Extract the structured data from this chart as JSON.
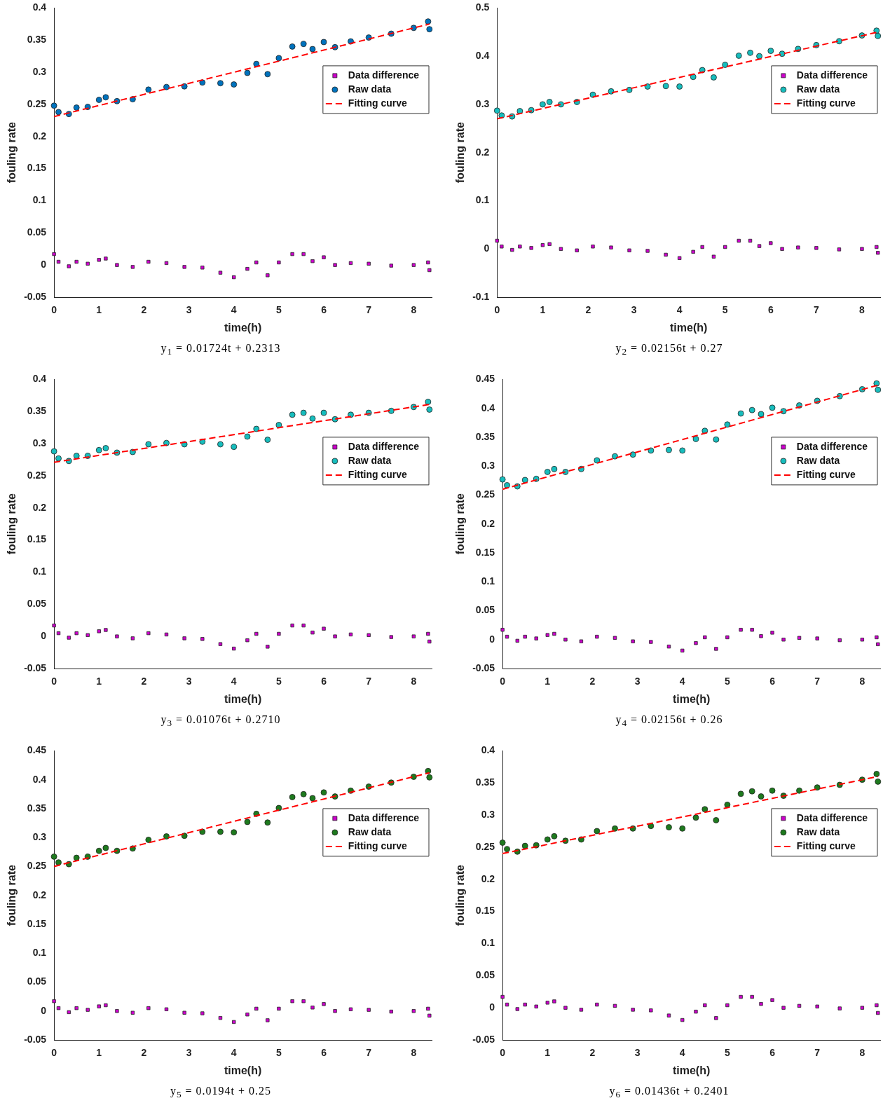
{
  "chart_data": [
    {
      "type": "scatter",
      "xlabel": "time(h)",
      "ylabel": "fouling rate",
      "xlim": [
        0,
        8.4
      ],
      "xticks": [
        0,
        1,
        2,
        3,
        4,
        5,
        6,
        7,
        8
      ],
      "ylim": [
        -0.05,
        0.4
      ],
      "yticks": [
        -0.05,
        0,
        0.05,
        0.1,
        0.15,
        0.2,
        0.25,
        0.3,
        0.35,
        0.4
      ],
      "legend": "right",
      "annotations": [
        "y$_{1}$ = 0.01724t + 0.2313"
      ],
      "x": [
        0,
        0.1,
        0.33,
        0.5,
        0.75,
        1.0,
        1.15,
        1.4,
        1.75,
        2.1,
        2.5,
        2.9,
        3.3,
        3.7,
        4.0,
        4.3,
        4.5,
        4.75,
        5.0,
        5.3,
        5.55,
        5.75,
        6.0,
        6.25,
        6.6,
        7.0,
        7.5,
        8.0,
        8.32,
        8.35
      ],
      "series": [
        {
          "name": "Data difference",
          "type": "scatter",
          "marker": "square",
          "color": "#cc00cc",
          "values": [
            0.017,
            0.005,
            -0.002,
            0.005,
            0.002,
            0.008,
            0.01,
            0.0,
            -0.003,
            0.005,
            0.003,
            -0.003,
            -0.004,
            -0.012,
            -0.019,
            -0.006,
            0.004,
            -0.016,
            0.004,
            0.017,
            0.017,
            0.006,
            0.012,
            0.0,
            0.003,
            0.002,
            -0.001,
            0.0,
            0.004,
            -0.008
          ]
        },
        {
          "name": "Raw data",
          "type": "scatter",
          "marker": "circle",
          "color": "#0072bd",
          "values": [
            0.248,
            0.238,
            0.235,
            0.245,
            0.246,
            0.257,
            0.261,
            0.255,
            0.258,
            0.273,
            0.277,
            0.278,
            0.284,
            0.283,
            0.281,
            0.299,
            0.313,
            0.297,
            0.322,
            0.34,
            0.344,
            0.336,
            0.347,
            0.339,
            0.348,
            0.354,
            0.36,
            0.369,
            0.379,
            0.367
          ]
        },
        {
          "name": "Fitting curve",
          "type": "line",
          "marker": "none",
          "line_style": "dashed",
          "color": "#ff0000",
          "x": [
            0,
            4,
            8.35
          ],
          "values": [
            0.231,
            0.3,
            0.375
          ]
        }
      ]
    },
    {
      "type": "scatter",
      "xlabel": "time(h)",
      "ylabel": "fouling rate",
      "xlim": [
        0,
        8.4
      ],
      "xticks": [
        0,
        1,
        2,
        3,
        4,
        5,
        6,
        7,
        8
      ],
      "ylim": [
        -0.1,
        0.5
      ],
      "yticks": [
        -0.1,
        0,
        0.1,
        0.2,
        0.3,
        0.4,
        0.5
      ],
      "legend": "right",
      "annotations": [
        "y$_{2}$ = 0.02156t + 0.27"
      ],
      "x": [
        0,
        0.1,
        0.33,
        0.5,
        0.75,
        1.0,
        1.15,
        1.4,
        1.75,
        2.1,
        2.5,
        2.9,
        3.3,
        3.7,
        4.0,
        4.3,
        4.5,
        4.75,
        5.0,
        5.3,
        5.55,
        5.75,
        6.0,
        6.25,
        6.6,
        7.0,
        7.5,
        8.0,
        8.32,
        8.35
      ],
      "series": [
        {
          "name": "Data difference",
          "type": "scatter",
          "marker": "square",
          "color": "#cc00cc",
          "values": [
            0.017,
            0.005,
            -0.002,
            0.005,
            0.002,
            0.008,
            0.01,
            0.0,
            -0.003,
            0.005,
            0.003,
            -0.003,
            -0.004,
            -0.012,
            -0.019,
            -0.006,
            0.004,
            -0.016,
            0.004,
            0.017,
            0.017,
            0.006,
            0.012,
            0.0,
            0.003,
            0.002,
            -0.001,
            0.0,
            0.004,
            -0.008
          ]
        },
        {
          "name": "Raw data",
          "type": "scatter",
          "marker": "circle",
          "color": "#17bdbd",
          "values": [
            0.287,
            0.277,
            0.275,
            0.286,
            0.288,
            0.3,
            0.305,
            0.3,
            0.305,
            0.32,
            0.327,
            0.33,
            0.337,
            0.338,
            0.337,
            0.357,
            0.371,
            0.356,
            0.382,
            0.401,
            0.407,
            0.4,
            0.411,
            0.405,
            0.415,
            0.423,
            0.431,
            0.443,
            0.453,
            0.442
          ]
        },
        {
          "name": "Fitting curve",
          "type": "line",
          "marker": "none",
          "line_style": "dashed",
          "color": "#ff0000",
          "x": [
            0,
            4,
            8.35
          ],
          "values": [
            0.27,
            0.356,
            0.45
          ]
        }
      ]
    },
    {
      "type": "scatter",
      "xlabel": "time(h)",
      "ylabel": "fouling rate",
      "xlim": [
        0,
        8.4
      ],
      "xticks": [
        0,
        1,
        2,
        3,
        4,
        5,
        6,
        7,
        8
      ],
      "ylim": [
        -0.05,
        0.4
      ],
      "yticks": [
        -0.05,
        0,
        0.05,
        0.1,
        0.15,
        0.2,
        0.25,
        0.3,
        0.35,
        0.4
      ],
      "legend": "right",
      "annotations": [
        "y$_{3}$ = 0.01076t + 0.2710"
      ],
      "x": [
        0,
        0.1,
        0.33,
        0.5,
        0.75,
        1.0,
        1.15,
        1.4,
        1.75,
        2.1,
        2.5,
        2.9,
        3.3,
        3.7,
        4.0,
        4.3,
        4.5,
        4.75,
        5.0,
        5.3,
        5.55,
        5.75,
        6.0,
        6.25,
        6.6,
        7.0,
        7.5,
        8.0,
        8.32,
        8.35
      ],
      "series": [
        {
          "name": "Data difference",
          "type": "scatter",
          "marker": "square",
          "color": "#cc00cc",
          "values": [
            0.017,
            0.005,
            -0.002,
            0.005,
            0.002,
            0.008,
            0.01,
            0.0,
            -0.003,
            0.005,
            0.003,
            -0.003,
            -0.004,
            -0.012,
            -0.019,
            -0.006,
            0.004,
            -0.016,
            0.004,
            0.017,
            0.017,
            0.006,
            0.012,
            0.0,
            0.003,
            0.002,
            -0.001,
            0.0,
            0.004,
            -0.008
          ]
        },
        {
          "name": "Raw data",
          "type": "scatter",
          "marker": "circle",
          "color": "#17bdbd",
          "values": [
            0.288,
            0.277,
            0.273,
            0.281,
            0.281,
            0.29,
            0.293,
            0.286,
            0.287,
            0.299,
            0.301,
            0.299,
            0.303,
            0.299,
            0.295,
            0.311,
            0.323,
            0.306,
            0.329,
            0.345,
            0.348,
            0.339,
            0.348,
            0.338,
            0.345,
            0.348,
            0.351,
            0.357,
            0.365,
            0.353
          ]
        },
        {
          "name": "Fitting curve",
          "type": "line",
          "marker": "none",
          "line_style": "dashed",
          "color": "#ff0000",
          "x": [
            0,
            4,
            8.35
          ],
          "values": [
            0.271,
            0.314,
            0.361
          ]
        }
      ]
    },
    {
      "type": "scatter",
      "xlabel": "time(h)",
      "ylabel": "fouling rate",
      "xlim": [
        0,
        8.4
      ],
      "xticks": [
        0,
        1,
        2,
        3,
        4,
        5,
        6,
        7,
        8
      ],
      "ylim": [
        -0.05,
        0.45
      ],
      "yticks": [
        -0.05,
        0,
        0.05,
        0.1,
        0.15,
        0.2,
        0.25,
        0.3,
        0.35,
        0.4,
        0.45
      ],
      "legend": "right",
      "annotations": [
        "y$_{4}$ = 0.02156t + 0.26"
      ],
      "x": [
        0,
        0.1,
        0.33,
        0.5,
        0.75,
        1.0,
        1.15,
        1.4,
        1.75,
        2.1,
        2.5,
        2.9,
        3.3,
        3.7,
        4.0,
        4.3,
        4.5,
        4.75,
        5.0,
        5.3,
        5.55,
        5.75,
        6.0,
        6.25,
        6.6,
        7.0,
        7.5,
        8.0,
        8.32,
        8.35
      ],
      "series": [
        {
          "name": "Data difference",
          "type": "scatter",
          "marker": "square",
          "color": "#cc00cc",
          "values": [
            0.017,
            0.005,
            -0.002,
            0.005,
            0.002,
            0.008,
            0.01,
            0.0,
            -0.003,
            0.005,
            0.003,
            -0.003,
            -0.004,
            -0.012,
            -0.019,
            -0.006,
            0.004,
            -0.016,
            0.004,
            0.017,
            0.017,
            0.006,
            0.012,
            0.0,
            0.003,
            0.002,
            -0.001,
            0.0,
            0.004,
            -0.008
          ]
        },
        {
          "name": "Raw data",
          "type": "scatter",
          "marker": "circle",
          "color": "#17bdbd",
          "values": [
            0.277,
            0.267,
            0.265,
            0.276,
            0.278,
            0.29,
            0.295,
            0.29,
            0.295,
            0.31,
            0.317,
            0.32,
            0.327,
            0.328,
            0.327,
            0.347,
            0.361,
            0.346,
            0.372,
            0.391,
            0.397,
            0.39,
            0.401,
            0.395,
            0.405,
            0.413,
            0.421,
            0.433,
            0.443,
            0.432
          ]
        },
        {
          "name": "Fitting curve",
          "type": "line",
          "marker": "none",
          "line_style": "dashed",
          "color": "#ff0000",
          "x": [
            0,
            4,
            8.35
          ],
          "values": [
            0.26,
            0.346,
            0.44
          ]
        }
      ]
    },
    {
      "type": "scatter",
      "xlabel": "time(h)",
      "ylabel": "fouling rate",
      "xlim": [
        0,
        8.4
      ],
      "xticks": [
        0,
        1,
        2,
        3,
        4,
        5,
        6,
        7,
        8
      ],
      "ylim": [
        -0.05,
        0.45
      ],
      "yticks": [
        -0.05,
        0,
        0.05,
        0.1,
        0.15,
        0.2,
        0.25,
        0.3,
        0.35,
        0.4,
        0.45
      ],
      "legend": "right",
      "annotations": [
        "y$_{5}$ = 0.0194t + 0.25"
      ],
      "x": [
        0,
        0.1,
        0.33,
        0.5,
        0.75,
        1.0,
        1.15,
        1.4,
        1.75,
        2.1,
        2.5,
        2.9,
        3.3,
        3.7,
        4.0,
        4.3,
        4.5,
        4.75,
        5.0,
        5.3,
        5.55,
        5.75,
        6.0,
        6.25,
        6.6,
        7.0,
        7.5,
        8.0,
        8.32,
        8.35
      ],
      "series": [
        {
          "name": "Data difference",
          "type": "scatter",
          "marker": "square",
          "color": "#cc00cc",
          "values": [
            0.017,
            0.005,
            -0.002,
            0.005,
            0.002,
            0.008,
            0.01,
            0.0,
            -0.003,
            0.005,
            0.003,
            -0.003,
            -0.004,
            -0.012,
            -0.019,
            -0.006,
            0.004,
            -0.016,
            0.004,
            0.017,
            0.017,
            0.006,
            0.012,
            0.0,
            0.003,
            0.002,
            -0.001,
            0.0,
            0.004,
            -0.008
          ]
        },
        {
          "name": "Raw data",
          "type": "scatter",
          "marker": "circle",
          "color": "#1e7a1e",
          "values": [
            0.267,
            0.257,
            0.254,
            0.265,
            0.267,
            0.277,
            0.282,
            0.277,
            0.281,
            0.296,
            0.302,
            0.303,
            0.31,
            0.31,
            0.309,
            0.327,
            0.341,
            0.326,
            0.351,
            0.37,
            0.375,
            0.368,
            0.378,
            0.371,
            0.381,
            0.388,
            0.395,
            0.405,
            0.415,
            0.404
          ]
        },
        {
          "name": "Fitting curve",
          "type": "line",
          "marker": "none",
          "line_style": "dashed",
          "color": "#ff0000",
          "x": [
            0,
            4,
            8.35
          ],
          "values": [
            0.25,
            0.328,
            0.412
          ]
        }
      ]
    },
    {
      "type": "scatter",
      "xlabel": "time(h)",
      "ylabel": "fouling rate",
      "xlim": [
        0,
        8.4
      ],
      "xticks": [
        0,
        1,
        2,
        3,
        4,
        5,
        6,
        7,
        8
      ],
      "ylim": [
        -0.05,
        0.4
      ],
      "yticks": [
        -0.05,
        0,
        0.05,
        0.1,
        0.15,
        0.2,
        0.25,
        0.3,
        0.35,
        0.4
      ],
      "legend": "right",
      "annotations": [
        "y$_{6}$ = 0.01436t + 0.2401"
      ],
      "x": [
        0,
        0.1,
        0.33,
        0.5,
        0.75,
        1.0,
        1.15,
        1.4,
        1.75,
        2.1,
        2.5,
        2.9,
        3.3,
        3.7,
        4.0,
        4.3,
        4.5,
        4.75,
        5.0,
        5.3,
        5.55,
        5.75,
        6.0,
        6.25,
        6.6,
        7.0,
        7.5,
        8.0,
        8.32,
        8.35
      ],
      "series": [
        {
          "name": "Data difference",
          "type": "scatter",
          "marker": "square",
          "color": "#cc00cc",
          "values": [
            0.017,
            0.005,
            -0.002,
            0.005,
            0.002,
            0.008,
            0.01,
            0.0,
            -0.003,
            0.005,
            0.003,
            -0.003,
            -0.004,
            -0.012,
            -0.019,
            -0.006,
            0.004,
            -0.016,
            0.004,
            0.017,
            0.017,
            0.006,
            0.012,
            0.0,
            0.003,
            0.002,
            -0.001,
            0.0,
            0.004,
            -0.008
          ]
        },
        {
          "name": "Raw data",
          "type": "scatter",
          "marker": "circle",
          "color": "#1e7a1e",
          "values": [
            0.257,
            0.247,
            0.243,
            0.252,
            0.253,
            0.262,
            0.267,
            0.26,
            0.262,
            0.275,
            0.279,
            0.279,
            0.283,
            0.281,
            0.279,
            0.296,
            0.309,
            0.292,
            0.316,
            0.333,
            0.337,
            0.329,
            0.338,
            0.33,
            0.338,
            0.343,
            0.347,
            0.355,
            0.364,
            0.352
          ]
        },
        {
          "name": "Fitting curve",
          "type": "line",
          "marker": "none",
          "line_style": "dashed",
          "color": "#ff0000",
          "x": [
            0,
            4,
            8.35
          ],
          "values": [
            0.24,
            0.297,
            0.36
          ]
        }
      ]
    }
  ]
}
